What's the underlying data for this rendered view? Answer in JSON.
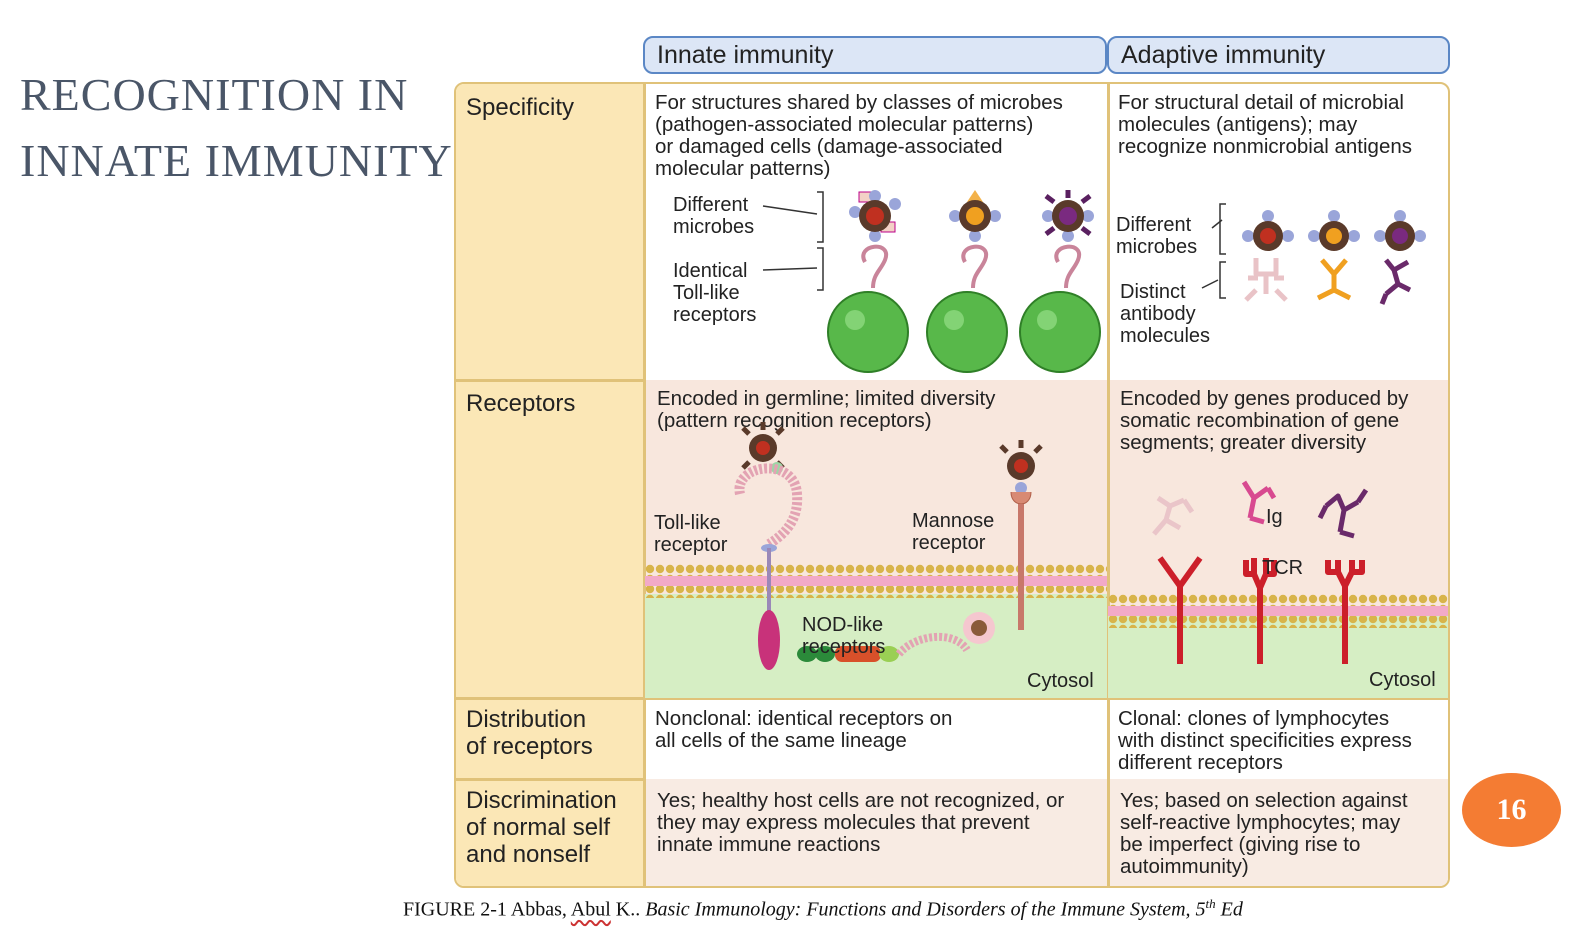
{
  "slide": {
    "title": "RECOGNITION IN\nINNATE IMMUNITY",
    "page_number": "16",
    "accent_color": "#f47c33"
  },
  "headers": {
    "innate": "Innate immunity",
    "adaptive": "Adaptive immunity"
  },
  "rows": {
    "specificity": {
      "label": "Specificity",
      "innate_text": "For structures shared by classes of microbes\n(pathogen-associated molecular patterns)\nor damaged cells (damage-associated\nmolecular patterns)",
      "innate_fig": {
        "different_microbes": "Different\nmicrobes",
        "identical_tlr": "Identical\nToll-like\nreceptors"
      },
      "adaptive_text": "For structural detail of microbial\nmolecules (antigens); may\nrecognize nonmicrobial antigens",
      "adaptive_fig": {
        "different_microbes": "Different\nmicrobes",
        "distinct_antibody": "Distinct\nantibody\nmolecules"
      }
    },
    "receptors": {
      "label": "Receptors",
      "innate_text": "Encoded in germline; limited diversity\n(pattern recognition receptors)",
      "innate_fig": {
        "toll_like": "Toll-like\nreceptor",
        "mannose": "Mannose\nreceptor",
        "nod_like": "NOD-like\nreceptors",
        "cytosol": "Cytosol"
      },
      "adaptive_text": "Encoded by genes produced by\nsomatic recombination of gene\nsegments; greater diversity",
      "adaptive_fig": {
        "ig": "Ig",
        "tcr": "TCR",
        "cytosol": "Cytosol"
      }
    },
    "distribution": {
      "label": "Distribution\nof receptors",
      "innate_text": "Nonclonal: identical receptors on\nall cells of the same lineage",
      "adaptive_text": "Clonal: clones of lymphocytes\nwith distinct specificities express\ndifferent receptors"
    },
    "discrimination": {
      "label": "Discrimination\nof normal self\nand nonself",
      "innate_text": "Yes; healthy host cells are not recognized, or\nthey may express molecules that prevent\ninnate immune reactions",
      "adaptive_text": "Yes; based on selection against\nself-reactive lymphocytes; may\nbe imperfect (giving rise to\nautoimmunity)"
    }
  },
  "caption": {
    "prefix": "FIGURE 2-1  Abbas, ",
    "author_flagged": "Abul",
    "author_rest": " K.. ",
    "title": "Basic Immunology: Functions and Disorders of the Immune System, 5",
    "sup": "th",
    "tail": " Ed"
  }
}
